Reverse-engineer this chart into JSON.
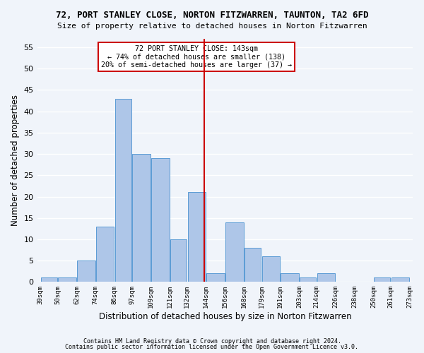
{
  "title": "72, PORT STANLEY CLOSE, NORTON FITZWARREN, TAUNTON, TA2 6FD",
  "subtitle": "Size of property relative to detached houses in Norton Fitzwarren",
  "xlabel": "Distribution of detached houses by size in Norton Fitzwarren",
  "ylabel": "Number of detached properties",
  "bar_edges": [
    39,
    50,
    62,
    74,
    86,
    97,
    109,
    121,
    132,
    144,
    156,
    168,
    179,
    191,
    203,
    214,
    226,
    238,
    250,
    261,
    273
  ],
  "bar_heights": [
    1,
    1,
    5,
    13,
    43,
    30,
    29,
    10,
    21,
    2,
    14,
    8,
    6,
    2,
    1,
    2,
    0,
    0,
    1,
    1
  ],
  "bar_color": "#aec6e8",
  "bar_edge_color": "#5b9bd5",
  "reference_line_x": 143,
  "reference_line_color": "#cc0000",
  "annotation_text": "72 PORT STANLEY CLOSE: 143sqm\n← 74% of detached houses are smaller (138)\n20% of semi-detached houses are larger (37) →",
  "annotation_box_color": "#cc0000",
  "ylim": [
    0,
    57
  ],
  "yticks": [
    0,
    5,
    10,
    15,
    20,
    25,
    30,
    35,
    40,
    45,
    50,
    55
  ],
  "tick_labels": [
    "39sqm",
    "50sqm",
    "62sqm",
    "74sqm",
    "86sqm",
    "97sqm",
    "109sqm",
    "121sqm",
    "132sqm",
    "144sqm",
    "156sqm",
    "168sqm",
    "179sqm",
    "191sqm",
    "203sqm",
    "214sqm",
    "226sqm",
    "238sqm",
    "250sqm",
    "261sqm",
    "273sqm"
  ],
  "footer1": "Contains HM Land Registry data © Crown copyright and database right 2024.",
  "footer2": "Contains public sector information licensed under the Open Government Licence v3.0.",
  "bg_color": "#f0f4fa",
  "grid_color": "#ffffff"
}
